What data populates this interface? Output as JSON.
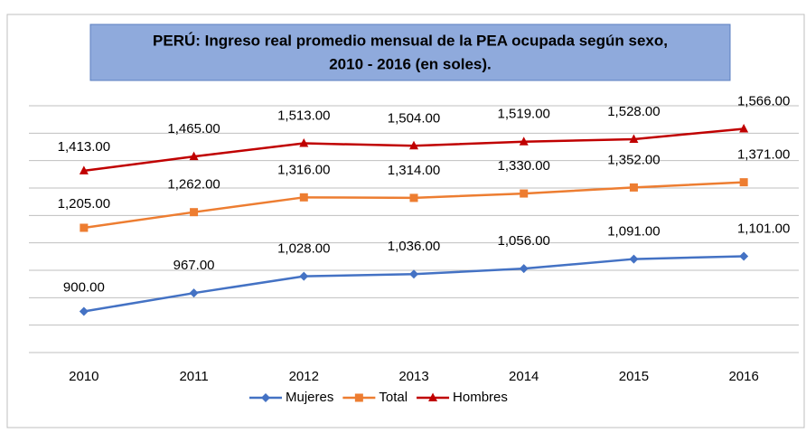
{
  "chart_data": {
    "type": "line",
    "title": "PERÚ:  Ingreso real promedio mensual de la PEA ocupada según sexo,",
    "subtitle": "2010 - 2016 (en soles).",
    "categories": [
      "2010",
      "2011",
      "2012",
      "2013",
      "2014",
      "2015",
      "2016"
    ],
    "series": [
      {
        "name": "Mujeres",
        "color": "#4472c4",
        "marker": "diamond",
        "values": [
          900,
          967,
          1028,
          1036,
          1056,
          1091,
          1101
        ],
        "value_labels": [
          "900.00",
          "967.00",
          "1,028.00",
          "1,036.00",
          "1,056.00",
          "1,091.00",
          "1,101.00"
        ]
      },
      {
        "name": "Total",
        "color": "#ed7d31",
        "marker": "square",
        "values": [
          1205,
          1262,
          1316,
          1314,
          1330,
          1352,
          1371
        ],
        "value_labels": [
          "1,205.00",
          "1,262.00",
          "1,316.00",
          "1,314.00",
          "1,330.00",
          "1,352.00",
          "1,371.00"
        ]
      },
      {
        "name": "Hombres",
        "color": "#c00000",
        "marker": "triangle",
        "values": [
          1413,
          1465,
          1513,
          1504,
          1519,
          1528,
          1566
        ],
        "value_labels": [
          "1,413.00",
          "1,465.00",
          "1,513.00",
          "1,504.00",
          "1,519.00",
          "1,528.00",
          "1,566.00"
        ]
      }
    ],
    "ylim": [
      750,
      1650
    ],
    "yticks": [
      750,
      850,
      950,
      1050,
      1150,
      1250,
      1350,
      1450,
      1550,
      1650
    ],
    "grid": true,
    "legend": "bottom"
  }
}
